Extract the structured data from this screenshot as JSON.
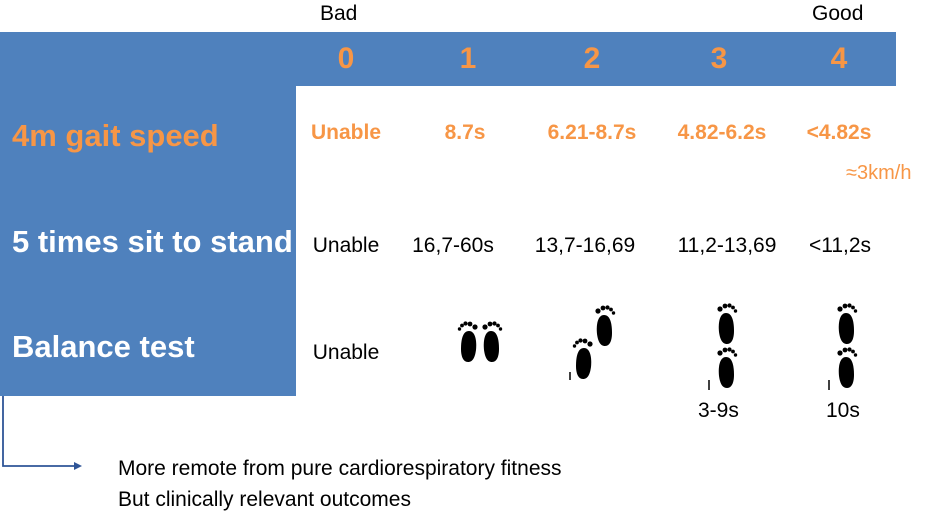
{
  "scale": {
    "bad_label": "Bad",
    "good_label": "Good",
    "scores": [
      "0",
      "1",
      "2",
      "3",
      "4"
    ]
  },
  "rows": [
    {
      "label": "4m gait speed",
      "values": [
        "Unable",
        "8.7s",
        "6.21-8.7s",
        "4.82-6.2s",
        "<4.82s"
      ],
      "note": "≈3km/h"
    },
    {
      "label": "5 times sit to stand",
      "values": [
        "Unable",
        "16,7-60s",
        "13,7-16,69",
        "11,2-13,69",
        "<11,2s"
      ]
    },
    {
      "label": "Balance test",
      "values": [
        "Unable"
      ],
      "stance_icons": [
        "side-by-side-feet-icon",
        "semi-tandem-feet-icon",
        "tandem-feet-icon",
        "tandem-feet-icon"
      ],
      "durations": [
        "3-9s",
        "10s"
      ]
    }
  ],
  "notes": [
    "More remote from pure cardiorespiratory fitness",
    "But clinically relevant outcomes"
  ],
  "colors": {
    "band": "#4f81bd",
    "accent": "#f79646",
    "text": "#000000"
  }
}
